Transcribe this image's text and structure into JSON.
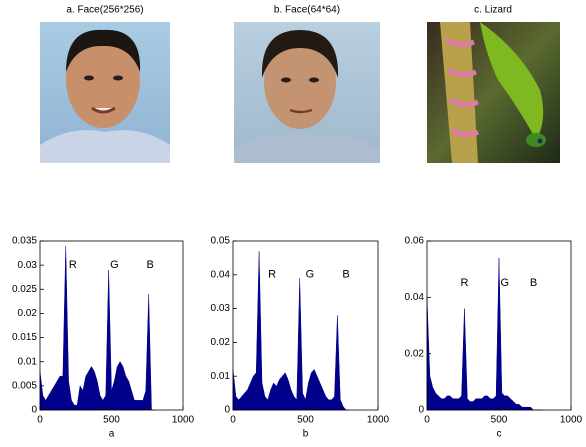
{
  "images": [
    {
      "title": "a. Face(256*256)"
    },
    {
      "title": "b. Face(64*64)"
    },
    {
      "title": "c. Lizard"
    }
  ],
  "chart_data": [
    {
      "type": "area",
      "xlabel": "a",
      "color": "#00008b",
      "annotations": [
        "R",
        "G",
        "B"
      ],
      "xlim": [
        0,
        1000
      ],
      "xticks": [
        0,
        500,
        1000
      ],
      "ylim": [
        0,
        0.035
      ],
      "yticks": [
        0,
        0.005,
        0.01,
        0.015,
        0.02,
        0.025,
        0.03,
        0.035
      ],
      "x": [
        0,
        20,
        40,
        60,
        80,
        100,
        120,
        140,
        160,
        180,
        200,
        220,
        240,
        260,
        280,
        300,
        320,
        340,
        360,
        380,
        400,
        420,
        440,
        460,
        480,
        500,
        520,
        540,
        560,
        580,
        600,
        620,
        640,
        660,
        680,
        700,
        720,
        740,
        760,
        780,
        800
      ],
      "values": [
        0.008,
        0.003,
        0.002,
        0.003,
        0.004,
        0.005,
        0.006,
        0.007,
        0.007,
        0.034,
        0.006,
        0.002,
        0.001,
        0.001,
        0.005,
        0.004,
        0.007,
        0.008,
        0.009,
        0.008,
        0.006,
        0.003,
        0.002,
        0.003,
        0.029,
        0.004,
        0.006,
        0.009,
        0.01,
        0.009,
        0.007,
        0.006,
        0.004,
        0.002,
        0.002,
        0.002,
        0.002,
        0.004,
        0.024,
        0,
        0
      ]
    },
    {
      "type": "area",
      "xlabel": "b",
      "color": "#00008b",
      "annotations": [
        "R",
        "G",
        "B"
      ],
      "xlim": [
        0,
        1000
      ],
      "xticks": [
        0,
        500,
        1000
      ],
      "ylim": [
        0,
        0.05
      ],
      "yticks": [
        0,
        0.01,
        0.02,
        0.03,
        0.04,
        0.05
      ],
      "x": [
        0,
        20,
        40,
        60,
        80,
        100,
        120,
        140,
        160,
        180,
        200,
        220,
        240,
        260,
        280,
        300,
        320,
        340,
        360,
        380,
        400,
        420,
        440,
        460,
        480,
        500,
        520,
        540,
        560,
        580,
        600,
        620,
        640,
        660,
        680,
        700,
        720,
        740,
        760,
        780,
        800
      ],
      "values": [
        0.012,
        0.004,
        0.003,
        0.004,
        0.005,
        0.006,
        0.008,
        0.01,
        0.011,
        0.047,
        0.008,
        0.004,
        0.003,
        0.006,
        0.008,
        0.007,
        0.009,
        0.01,
        0.011,
        0.009,
        0.006,
        0.004,
        0.003,
        0.039,
        0.005,
        0.003,
        0.008,
        0.011,
        0.012,
        0.01,
        0.008,
        0.006,
        0.004,
        0.003,
        0.003,
        0.004,
        0.028,
        0.003,
        0.001,
        0,
        0
      ]
    },
    {
      "type": "area",
      "xlabel": "c",
      "color": "#00008b",
      "annotations": [
        "R",
        "G",
        "B"
      ],
      "xlim": [
        0,
        1000
      ],
      "xticks": [
        0,
        500,
        1000
      ],
      "ylim": [
        0,
        0.06
      ],
      "yticks": [
        0,
        0.02,
        0.04,
        0.06
      ],
      "x": [
        0,
        20,
        40,
        60,
        80,
        100,
        120,
        140,
        160,
        180,
        200,
        220,
        240,
        260,
        280,
        300,
        320,
        340,
        360,
        380,
        400,
        420,
        440,
        460,
        480,
        500,
        520,
        540,
        560,
        580,
        600,
        620,
        640,
        660,
        680,
        700,
        720,
        740,
        760,
        780,
        800
      ],
      "values": [
        0.04,
        0.012,
        0.008,
        0.006,
        0.005,
        0.004,
        0.004,
        0.005,
        0.005,
        0.004,
        0.004,
        0.004,
        0.005,
        0.036,
        0.004,
        0.003,
        0.003,
        0.004,
        0.004,
        0.004,
        0.005,
        0.005,
        0.004,
        0.004,
        0.005,
        0.054,
        0.006,
        0.005,
        0.005,
        0.004,
        0.003,
        0.002,
        0.002,
        0.001,
        0.001,
        0.001,
        0.001,
        0,
        0,
        0,
        0
      ]
    }
  ]
}
